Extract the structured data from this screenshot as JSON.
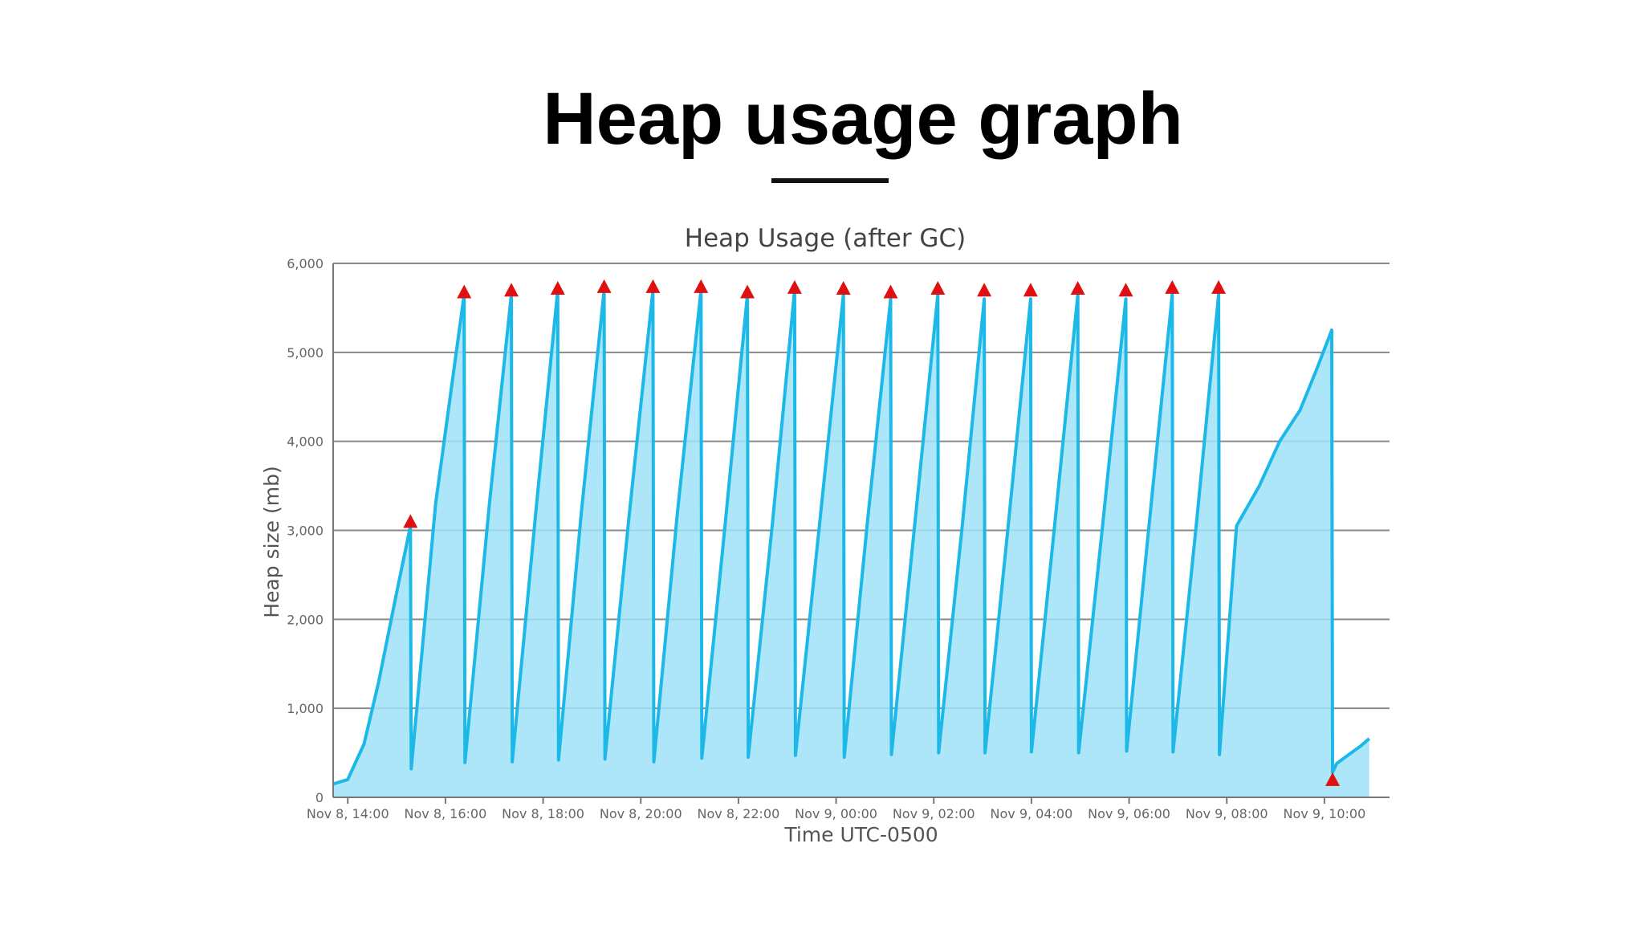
{
  "slide": {
    "title": "Heap usage graph"
  },
  "chart_data": {
    "type": "area",
    "title": "Heap Usage (after GC)",
    "xlabel": "Time UTC-0500",
    "ylabel": "Heap size (mb)",
    "ylim": [
      0,
      6000
    ],
    "yticks": [
      0,
      1000,
      2000,
      3000,
      4000,
      5000,
      6000
    ],
    "ytick_labels": [
      "0",
      "1,000",
      "2,000",
      "3,000",
      "4,000",
      "5,000",
      "6,000"
    ],
    "xlim": [
      "2023-11-08T13:42",
      "2023-11-09T11:20"
    ],
    "xticks": [
      {
        "t": "2023-11-08T14:00",
        "label": "Nov 8, 14:00"
      },
      {
        "t": "2023-11-08T16:00",
        "label": "Nov 8, 16:00"
      },
      {
        "t": "2023-11-08T18:00",
        "label": "Nov 8, 18:00"
      },
      {
        "t": "2023-11-08T20:00",
        "label": "Nov 8, 20:00"
      },
      {
        "t": "2023-11-08T22:00",
        "label": "Nov 8, 22:00"
      },
      {
        "t": "2023-11-09T00:00",
        "label": "Nov 9, 00:00"
      },
      {
        "t": "2023-11-09T02:00",
        "label": "Nov 9, 02:00"
      },
      {
        "t": "2023-11-09T04:00",
        "label": "Nov 9, 04:00"
      },
      {
        "t": "2023-11-09T06:00",
        "label": "Nov 9, 06:00"
      },
      {
        "t": "2023-11-09T08:00",
        "label": "Nov 9, 08:00"
      },
      {
        "t": "2023-11-09T10:00",
        "label": "Nov 9, 10:00"
      }
    ],
    "grid": "horizontal",
    "series": [
      {
        "color": "#1cb8e8",
        "fill": "#9fe0f8",
        "points": [
          [
            "2023-11-08T13:42",
            150
          ],
          [
            "2023-11-08T14:00",
            200
          ],
          [
            "2023-11-08T14:20",
            600
          ],
          [
            "2023-11-08T14:38",
            1300
          ],
          [
            "2023-11-08T15:00",
            2300
          ],
          [
            "2023-11-08T15:17",
            3050
          ],
          [
            "2023-11-08T15:18",
            320
          ],
          [
            "2023-11-08T15:48",
            3300
          ],
          [
            "2023-11-08T16:23",
            5650
          ],
          [
            "2023-11-08T16:24",
            390
          ],
          [
            "2023-11-08T16:54",
            3300
          ],
          [
            "2023-11-08T17:21",
            5650
          ],
          [
            "2023-11-08T17:22",
            400
          ],
          [
            "2023-11-08T17:52",
            3300
          ],
          [
            "2023-11-08T18:18",
            5700
          ],
          [
            "2023-11-08T18:19",
            420
          ],
          [
            "2023-11-08T18:47",
            3200
          ],
          [
            "2023-11-08T19:15",
            5700
          ],
          [
            "2023-11-08T19:16",
            430
          ],
          [
            "2023-11-08T19:45",
            3100
          ],
          [
            "2023-11-08T20:15",
            5700
          ],
          [
            "2023-11-08T20:16",
            400
          ],
          [
            "2023-11-08T20:45",
            3200
          ],
          [
            "2023-11-08T21:14",
            5700
          ],
          [
            "2023-11-08T21:15",
            440
          ],
          [
            "2023-11-08T21:44",
            3100
          ],
          [
            "2023-11-08T22:11",
            5650
          ],
          [
            "2023-11-08T22:12",
            450
          ],
          [
            "2023-11-08T22:42",
            3100
          ],
          [
            "2023-11-08T23:09",
            5700
          ],
          [
            "2023-11-08T23:10",
            470
          ],
          [
            "2023-11-08T23:40",
            3100
          ],
          [
            "2023-11-09T00:09",
            5650
          ],
          [
            "2023-11-09T00:10",
            450
          ],
          [
            "2023-11-09T00:38",
            3050
          ],
          [
            "2023-11-09T01:07",
            5600
          ],
          [
            "2023-11-09T01:08",
            480
          ],
          [
            "2023-11-09T01:37",
            3100
          ],
          [
            "2023-11-09T02:05",
            5650
          ],
          [
            "2023-11-09T02:06",
            500
          ],
          [
            "2023-11-09T02:35",
            3050
          ],
          [
            "2023-11-09T03:02",
            5600
          ],
          [
            "2023-11-09T03:03",
            500
          ],
          [
            "2023-11-09T03:32",
            3100
          ],
          [
            "2023-11-09T03:59",
            5600
          ],
          [
            "2023-11-09T04:00",
            510
          ],
          [
            "2023-11-09T04:29",
            3100
          ],
          [
            "2023-11-09T04:57",
            5650
          ],
          [
            "2023-11-09T04:58",
            500
          ],
          [
            "2023-11-09T05:28",
            3100
          ],
          [
            "2023-11-09T05:56",
            5600
          ],
          [
            "2023-11-09T05:57",
            520
          ],
          [
            "2023-11-09T06:25",
            3100
          ],
          [
            "2023-11-09T06:53",
            5650
          ],
          [
            "2023-11-09T06:54",
            510
          ],
          [
            "2023-11-09T07:23",
            3100
          ],
          [
            "2023-11-09T07:50",
            5650
          ],
          [
            "2023-11-09T07:51",
            480
          ],
          [
            "2023-11-09T08:05",
            2200
          ],
          [
            "2023-11-09T08:12",
            3050
          ],
          [
            "2023-11-09T08:40",
            3500
          ],
          [
            "2023-11-09T09:05",
            4000
          ],
          [
            "2023-11-09T09:30",
            4350
          ],
          [
            "2023-11-09T09:50",
            4800
          ],
          [
            "2023-11-09T10:09",
            5250
          ],
          [
            "2023-11-09T10:10",
            280
          ],
          [
            "2023-11-09T10:15",
            380
          ],
          [
            "2023-11-09T10:30",
            480
          ],
          [
            "2023-11-09T10:45",
            580
          ],
          [
            "2023-11-09T10:55",
            660
          ]
        ]
      }
    ],
    "gc_markers": {
      "color": "#e01010",
      "points": [
        [
          "2023-11-08T15:17",
          3100
        ],
        [
          "2023-11-08T16:23",
          5680
        ],
        [
          "2023-11-08T17:21",
          5700
        ],
        [
          "2023-11-08T18:18",
          5720
        ],
        [
          "2023-11-08T19:15",
          5740
        ],
        [
          "2023-11-08T20:15",
          5740
        ],
        [
          "2023-11-08T21:14",
          5740
        ],
        [
          "2023-11-08T22:11",
          5680
        ],
        [
          "2023-11-08T23:09",
          5730
        ],
        [
          "2023-11-09T00:09",
          5720
        ],
        [
          "2023-11-09T01:07",
          5680
        ],
        [
          "2023-11-09T02:05",
          5720
        ],
        [
          "2023-11-09T03:02",
          5700
        ],
        [
          "2023-11-09T03:59",
          5700
        ],
        [
          "2023-11-09T04:57",
          5720
        ],
        [
          "2023-11-09T05:56",
          5700
        ],
        [
          "2023-11-09T06:53",
          5730
        ],
        [
          "2023-11-09T07:50",
          5730
        ],
        [
          "2023-11-09T10:10",
          200
        ]
      ]
    }
  }
}
